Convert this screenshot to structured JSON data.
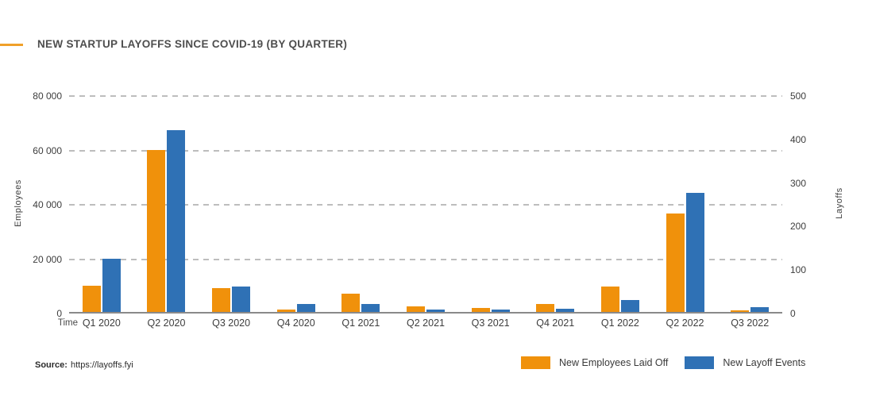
{
  "header": {
    "title": "NEW STARTUP LAYOFFS SINCE COVID-19 (BY QUARTER)"
  },
  "source": {
    "label": "Source:",
    "url_text": "https://layoffs.fyi"
  },
  "colors": {
    "accent_dash": "#f0a029",
    "employees_orange": "#f0910b",
    "events_blue": "#2f71b5",
    "gridline": "#bdbdbd",
    "axis_line": "#8a8a8a",
    "title_text": "#4e4e4e"
  },
  "chart_data": {
    "type": "bar",
    "title": "NEW STARTUP LAYOFFS SINCE COVID-19 (BY QUARTER)",
    "xlabel": "Time",
    "grid": "horizontal-dashed",
    "legend_position": "bottom-right",
    "categories": [
      "Q1 2020",
      "Q2 2020",
      "Q3 2020",
      "Q4 2020",
      "Q1 2021",
      "Q2 2021",
      "Q3 2021",
      "Q4 2021",
      "Q1 2022",
      "Q2 2022",
      "Q3 2022"
    ],
    "series": [
      {
        "name": "New Employees Laid Off",
        "axis": "left",
        "color": "#f0910b",
        "values": [
          9800,
          59800,
          9100,
          1200,
          6900,
          2400,
          1800,
          3200,
          9700,
          36500,
          1000
        ]
      },
      {
        "name": "New Layoff Events",
        "axis": "right",
        "color": "#2f71b5",
        "values": [
          124,
          420,
          61,
          21,
          20,
          7,
          8,
          9,
          29,
          275,
          12
        ]
      }
    ],
    "left_axis": {
      "label": "Employees",
      "ylim": [
        0,
        80000
      ],
      "ticks": [
        "0",
        "20 000",
        "40 000",
        "60 000",
        "80 000"
      ]
    },
    "right_axis": {
      "label": "Layoffs",
      "ylim": [
        0,
        500
      ],
      "ticks": [
        "0",
        "100",
        "200",
        "300",
        "400",
        "500"
      ]
    }
  }
}
